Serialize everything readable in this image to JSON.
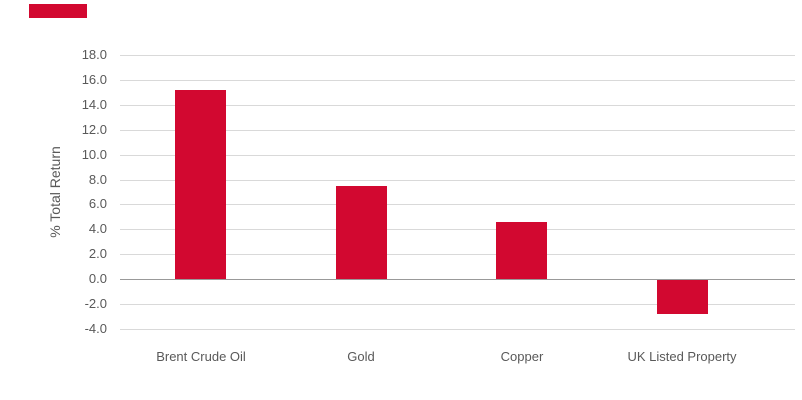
{
  "page": {
    "background": "#ffffff"
  },
  "brand": {
    "mark": "red-rectangle-logo",
    "color": "#D20830"
  },
  "chart_data": {
    "type": "bar",
    "title": "",
    "xlabel": "",
    "ylabel": "% Total Return",
    "categories": [
      "Brent Crude Oil",
      "Gold",
      "Copper",
      "UK Listed Property"
    ],
    "values": [
      15.2,
      7.5,
      4.6,
      -2.7
    ],
    "ylim": [
      -4.0,
      18.0
    ],
    "ytick_step": 2.0,
    "ytick_labels": [
      "18.0",
      "16.0",
      "14.0",
      "12.0",
      "10.0",
      "8.0",
      "6.0",
      "4.0",
      "2.0",
      "0.0",
      "-2.0",
      "-4.0"
    ],
    "grid": true,
    "legend": false,
    "colors": {
      "bar": "#D20830",
      "gridline": "#D9D9D9",
      "zero_line": "#999999",
      "text": "#595959"
    }
  }
}
